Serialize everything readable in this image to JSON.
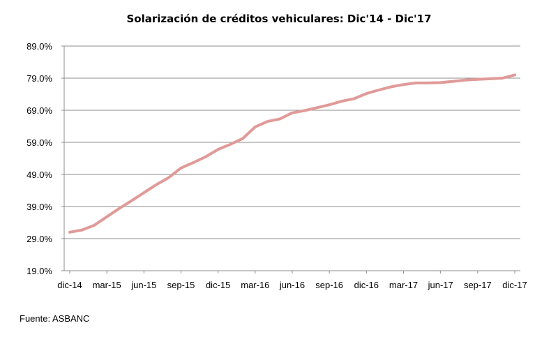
{
  "chart_data": {
    "type": "line",
    "title": "Solarización de créditos vehiculares: Dic'14 - Dic'17",
    "xlabel": "",
    "ylabel": "",
    "ylim": [
      19.0,
      89.0
    ],
    "yticks": [
      "89.0%",
      "79.0%",
      "69.0%",
      "59.0%",
      "49.0%",
      "39.0%",
      "29.0%",
      "19.0%"
    ],
    "ytick_values": [
      89,
      79,
      69,
      59,
      49,
      39,
      29,
      19
    ],
    "xtick_labels": [
      "dic-14",
      "mar-15",
      "jun-15",
      "sep-15",
      "dic-15",
      "mar-16",
      "jun-16",
      "sep-16",
      "dic-16",
      "mar-17",
      "jun-17",
      "sep-17",
      "dic-17"
    ],
    "grid": true,
    "series_color": "#E09A98",
    "series": [
      {
        "x": [
          "dic-14",
          "ene-15",
          "feb-15",
          "mar-15",
          "abr-15",
          "may-15",
          "jun-15",
          "jul-15",
          "ago-15",
          "sep-15",
          "oct-15",
          "nov-15",
          "dic-15",
          "ene-16",
          "feb-16",
          "mar-16",
          "abr-16",
          "may-16",
          "jun-16",
          "jul-16",
          "ago-16",
          "sep-16",
          "oct-16",
          "nov-16",
          "dic-16",
          "ene-17",
          "feb-17",
          "mar-17",
          "abr-17",
          "may-17",
          "jun-17",
          "jul-17",
          "ago-17",
          "sep-17",
          "oct-17",
          "nov-17",
          "dic-17"
        ],
        "values": [
          31.0,
          31.7,
          33.2,
          35.8,
          38.4,
          40.8,
          43.3,
          45.8,
          48.0,
          51.0,
          52.7,
          54.5,
          56.8,
          58.4,
          60.2,
          63.8,
          65.5,
          66.3,
          68.2,
          68.9,
          69.8,
          70.7,
          71.8,
          72.6,
          74.2,
          75.3,
          76.3,
          77.0,
          77.5,
          77.5,
          77.6,
          78.0,
          78.4,
          78.6,
          78.8,
          79.0,
          80.0
        ]
      }
    ]
  },
  "source": "Fuente: ASBANC"
}
